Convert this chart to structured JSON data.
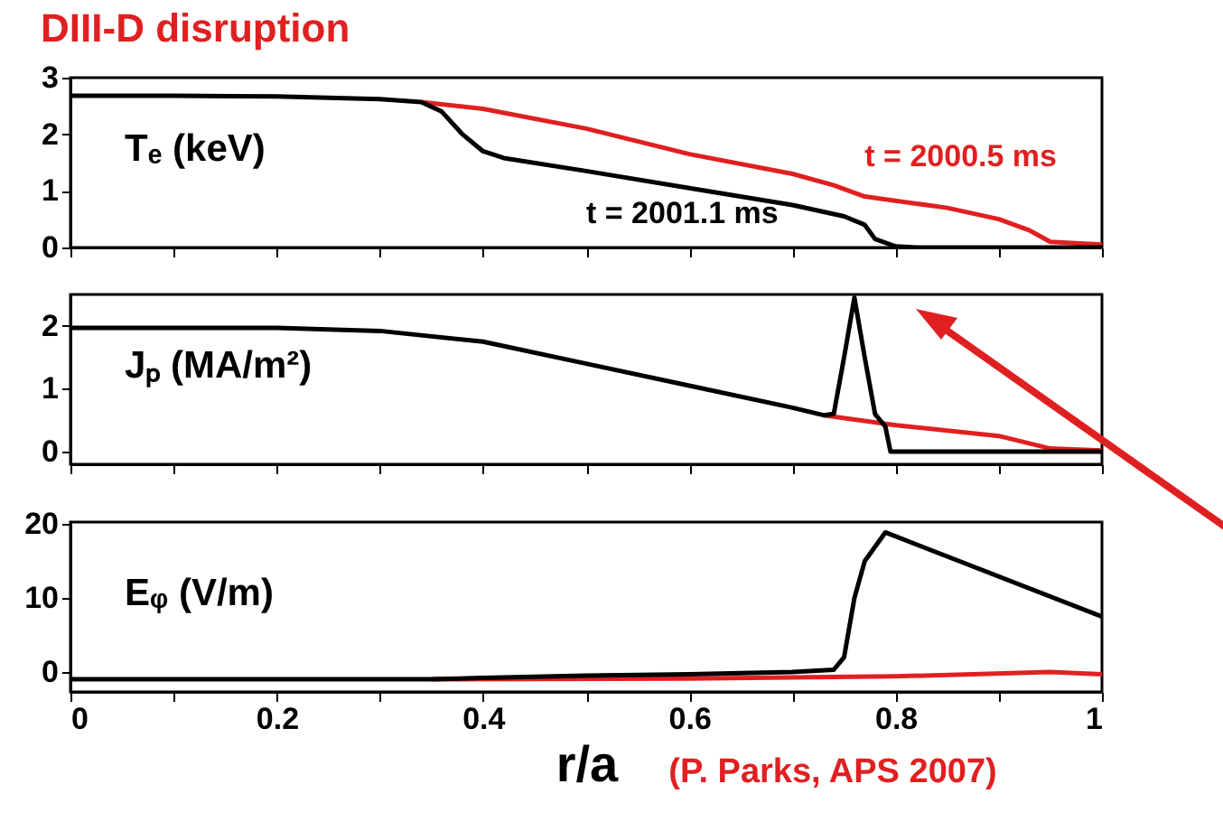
{
  "chart_data": [
    {
      "type": "line",
      "title": "DIII-D disruption",
      "annotations": [
        "Tₑ (keV)"
      ],
      "xlim": [
        0,
        1
      ],
      "xticks": [
        0,
        {
          "value": 0.1,
          "label": null
        },
        0.2,
        {
          "value": 0.3,
          "label": null
        },
        0.4,
        {
          "value": 0.5,
          "label": null
        },
        0.6,
        {
          "value": 0.7,
          "label": null
        },
        0.8,
        {
          "value": 0.9,
          "label": null
        },
        1
      ],
      "ylim": [
        0,
        3
      ],
      "yticks": [
        0,
        1,
        2,
        3
      ],
      "tick_labels": "y",
      "grid": false,
      "series": [
        {
          "name": "t = 2000.5 ms",
          "color": "#e02020",
          "x": [
            0.34,
            0.4,
            0.5,
            0.6,
            0.7,
            0.74,
            0.77,
            0.85,
            0.9,
            0.93,
            0.95,
            1
          ],
          "values": [
            2.57,
            2.45,
            2.1,
            1.65,
            1.3,
            1.1,
            0.9,
            0.7,
            0.5,
            0.3,
            0.1,
            0.05
          ]
        },
        {
          "name": "t = 2001.1 ms",
          "color": "#000000",
          "x": [
            0,
            0.1,
            0.2,
            0.3,
            0.34,
            0.36,
            0.38,
            0.4,
            0.42,
            0.5,
            0.6,
            0.7,
            0.75,
            0.77,
            0.78,
            0.8,
            0.82,
            1
          ],
          "values": [
            2.68,
            2.68,
            2.67,
            2.62,
            2.57,
            2.4,
            2.0,
            1.7,
            1.58,
            1.35,
            1.05,
            0.75,
            0.55,
            0.4,
            0.15,
            0.02,
            0,
            0
          ]
        }
      ]
    },
    {
      "type": "line",
      "annotations": [
        "Jₚ (MA/m²)"
      ],
      "xlim": [
        0,
        1
      ],
      "xticks": [
        0,
        {
          "value": 0.1,
          "label": null
        },
        0.2,
        {
          "value": 0.3,
          "label": null
        },
        0.4,
        {
          "value": 0.5,
          "label": null
        },
        0.6,
        {
          "value": 0.7,
          "label": null
        },
        0.8,
        {
          "value": 0.9,
          "label": null
        },
        1
      ],
      "ylim": [
        -0.2,
        2.5
      ],
      "yticks": [
        0,
        1,
        2
      ],
      "tick_labels": "y",
      "grid": false,
      "series": [
        {
          "color": "#e02020",
          "x": [
            0.73,
            0.8,
            0.9,
            0.95,
            1
          ],
          "values": [
            0.58,
            0.42,
            0.25,
            0.05,
            0.02
          ]
        },
        {
          "color": "#000000",
          "x": [
            0,
            0.2,
            0.3,
            0.4,
            0.5,
            0.6,
            0.7,
            0.73,
            0.74,
            0.75,
            0.76,
            0.77,
            0.78,
            0.79,
            0.795,
            1
          ],
          "values": [
            1.97,
            1.97,
            1.92,
            1.75,
            1.4,
            1.05,
            0.7,
            0.58,
            0.6,
            1.5,
            2.45,
            1.5,
            0.6,
            0.4,
            0,
            0
          ]
        }
      ]
    },
    {
      "type": "line",
      "xlabel": "r/a",
      "annotations": [
        "Eᵩ (V/m)",
        "(P. Parks, APS 2007)"
      ],
      "xlim": [
        0,
        1
      ],
      "xticks": [
        0,
        {
          "value": 0.1,
          "label": null
        },
        0.2,
        {
          "value": 0.3,
          "label": null
        },
        0.4,
        {
          "value": 0.5,
          "label": null
        },
        0.6,
        {
          "value": 0.7,
          "label": null
        },
        0.8,
        {
          "value": 0.9,
          "label": null
        },
        1
      ],
      "ylim": [
        -2.7,
        20.3
      ],
      "yticks": [
        0,
        10,
        20
      ],
      "grid": false,
      "series": [
        {
          "color": "#e02020",
          "x": [
            0.35,
            0.6,
            0.8,
            0.95,
            1
          ],
          "values": [
            -1,
            -0.9,
            -0.6,
            0,
            -0.3
          ]
        },
        {
          "color": "#000000",
          "x": [
            0,
            0.35,
            0.4,
            0.5,
            0.6,
            0.7,
            0.74,
            0.75,
            0.76,
            0.77,
            0.79,
            1
          ],
          "values": [
            -1,
            -1,
            -0.8,
            -0.5,
            -0.3,
            0,
            0.3,
            2,
            10,
            15,
            18.9,
            7.5
          ]
        }
      ]
    }
  ]
}
